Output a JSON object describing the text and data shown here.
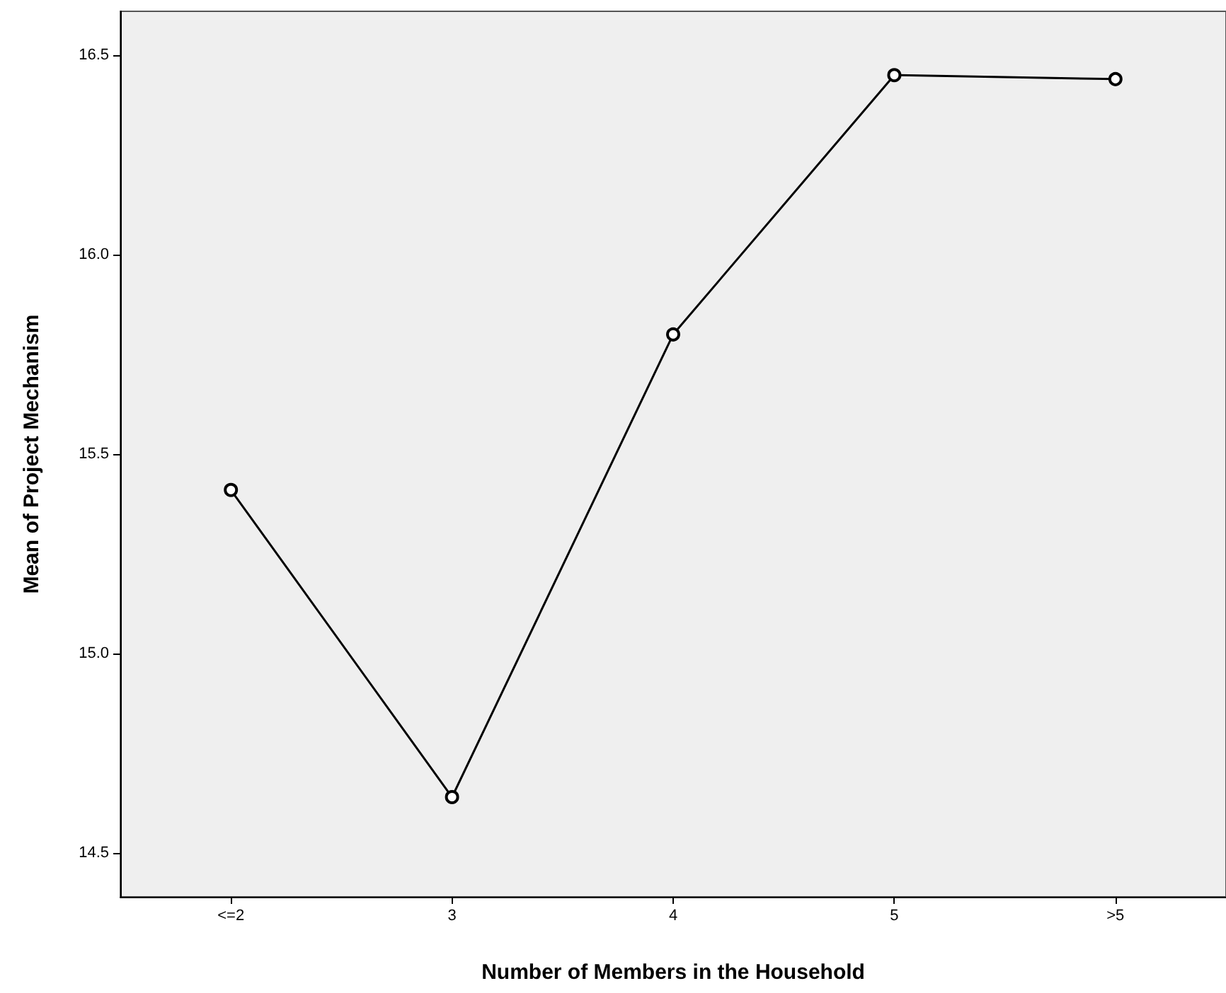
{
  "chart_data": {
    "type": "line",
    "xlabel": "Number of Members in the Household",
    "ylabel": "Mean of Project Mechanism",
    "categories": [
      "<=2",
      "3",
      "4",
      "5",
      ">5"
    ],
    "series": [
      {
        "color": "#000000",
        "values": [
          15.41,
          14.64,
          15.8,
          16.45,
          16.44
        ]
      }
    ],
    "ylim": [
      14.39,
      16.61
    ],
    "yticks": [
      14.5,
      {
        "value": 15,
        "label": "15.0"
      },
      15.5,
      {
        "value": 16,
        "label": "16.0"
      },
      16.5
    ],
    "marker": "circle",
    "line_style": "solid"
  }
}
